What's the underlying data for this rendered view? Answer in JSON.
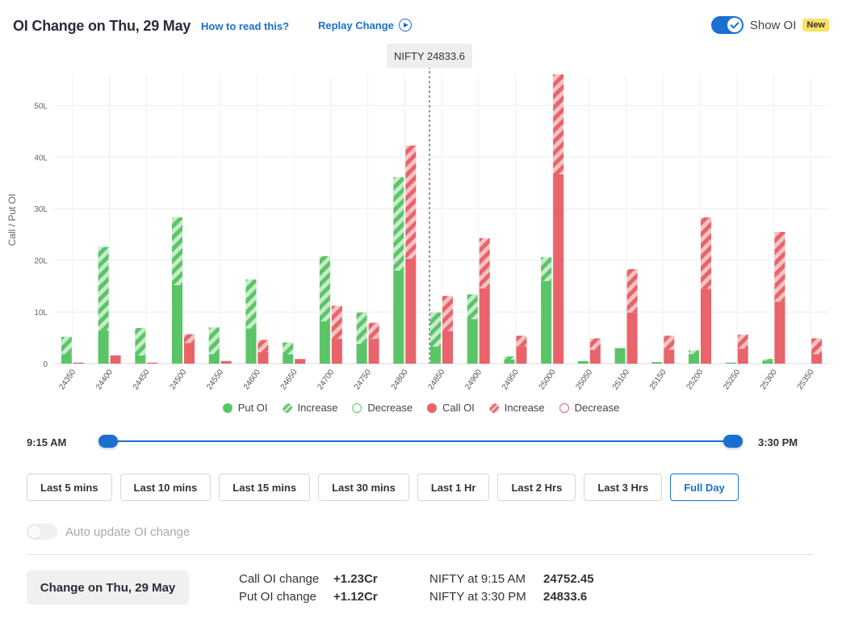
{
  "header": {
    "title": "OI Change on Thu, 29 May",
    "help_link": "How to read this?",
    "replay_link": "Replay Change",
    "show_oi_label": "Show OI",
    "new_badge": "New"
  },
  "chart_data": {
    "type": "bar",
    "ylabel": "Call / Put OI",
    "ylim": [
      0,
      56
    ],
    "y_ticks": [
      0,
      10,
      20,
      30,
      40,
      50
    ],
    "y_tick_labels": [
      "0",
      "10L",
      "20L",
      "30L",
      "40L",
      "50L"
    ],
    "spot_label": "NIFTY 24833.6",
    "spot_value": 24833.6,
    "categories": [
      "24350",
      "24400",
      "24450",
      "24500",
      "24550",
      "24600",
      "24650",
      "24700",
      "24750",
      "24800",
      "24850",
      "24900",
      "24950",
      "25000",
      "25050",
      "25100",
      "25150",
      "25200",
      "25250",
      "25300",
      "25350"
    ],
    "series": [
      {
        "name": "Put OI",
        "values": [
          1.8,
          6.4,
          1.6,
          15.2,
          1.8,
          6.8,
          1.8,
          8.2,
          3.8,
          18.0,
          3.3,
          8.6,
          0.8,
          16.0,
          0.5,
          3.0,
          0.3,
          1.8,
          0.2,
          0.6,
          0.0
        ]
      },
      {
        "name": "Increase",
        "values": [
          3.4,
          16.2,
          5.3,
          13.1,
          5.2,
          9.5,
          2.3,
          12.6,
          6.1,
          18.1,
          6.6,
          4.8,
          0.6,
          4.6,
          0.0,
          0.0,
          0.0,
          0.8,
          0.0,
          0.3,
          0.0
        ]
      },
      {
        "name": "Call OI",
        "values": [
          0.2,
          1.6,
          0.2,
          4.0,
          0.5,
          2.2,
          0.9,
          4.8,
          4.8,
          20.3,
          6.3,
          14.6,
          3.4,
          36.6,
          2.7,
          9.9,
          2.7,
          14.5,
          2.9,
          12.0,
          1.8
        ]
      },
      {
        "name": "Increase",
        "values": [
          0.0,
          0.0,
          0.0,
          1.7,
          0.0,
          2.4,
          0.0,
          6.4,
          3.1,
          21.9,
          6.8,
          9.7,
          2.0,
          20.0,
          2.2,
          8.4,
          2.7,
          13.8,
          2.7,
          13.5,
          3.1
        ]
      }
    ],
    "legend": {
      "placement": "bottom",
      "entries": [
        "Put OI",
        "Increase",
        "Decrease",
        "Call OI",
        "Increase",
        "Decrease"
      ]
    },
    "colors": {
      "put": "#5ac566",
      "put_light": "#c8ebcb",
      "call": "#e8636a",
      "call_light": "#f6c3c5"
    },
    "grid": true
  },
  "slider": {
    "start": "9:15 AM",
    "end": "3:30 PM"
  },
  "range_buttons": [
    {
      "label": "Last 5 mins",
      "active": false
    },
    {
      "label": "Last 10 mins",
      "active": false
    },
    {
      "label": "Last 15 mins",
      "active": false
    },
    {
      "label": "Last 30 mins",
      "active": false
    },
    {
      "label": "Last 1 Hr",
      "active": false
    },
    {
      "label": "Last 2 Hrs",
      "active": false
    },
    {
      "label": "Last 3 Hrs",
      "active": false
    },
    {
      "label": "Full Day",
      "active": true
    }
  ],
  "auto_update": {
    "label": "Auto update OI change",
    "enabled": false
  },
  "summary": {
    "button": "Change on Thu, 29 May",
    "call_label": "Call OI change",
    "call_value": "+1.23Cr",
    "put_label": "Put OI change",
    "put_value": "+1.12Cr",
    "nifty_start_label": "NIFTY at 9:15 AM",
    "nifty_start_value": "24752.45",
    "nifty_end_label": "NIFTY at 3:30 PM",
    "nifty_end_value": "24833.6"
  }
}
